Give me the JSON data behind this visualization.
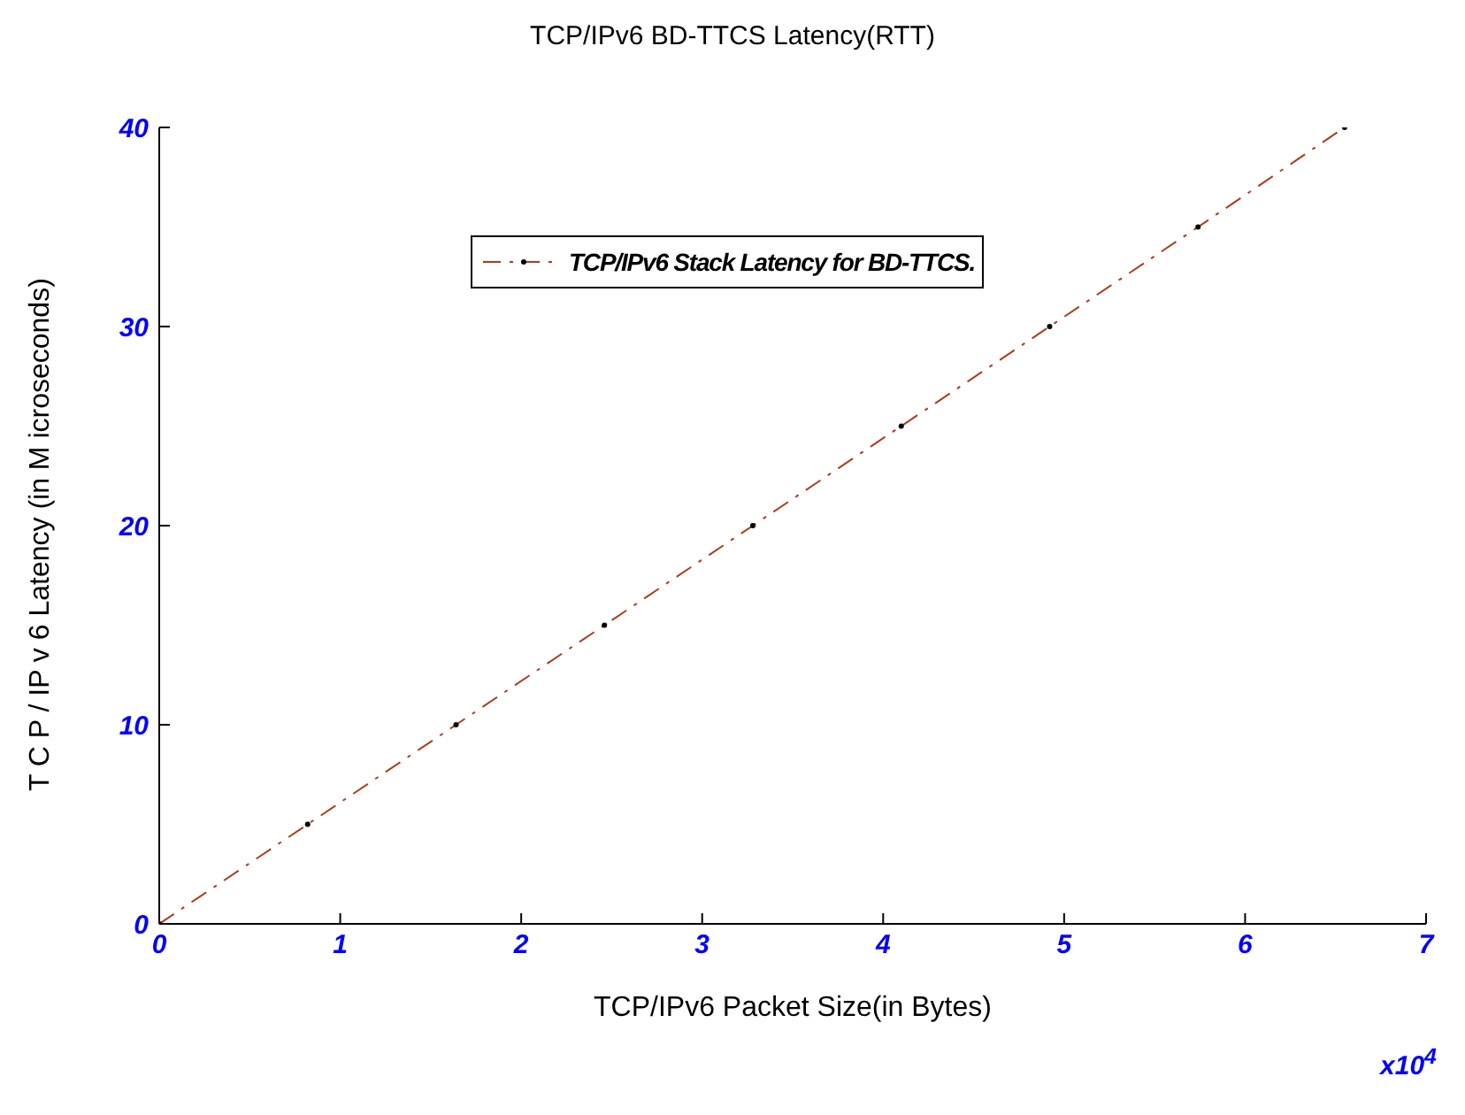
{
  "chart_data": {
    "type": "line",
    "title": "TCP/IPv6 BD-TTCS  Latency(RTT)",
    "xlabel": "TCP/IPv6 Packet Size(in Bytes)",
    "ylabel": "T C P / IP v 6  Latency (in  M icroseconds)",
    "x": [
      0,
      0.82,
      1.64,
      2.46,
      3.28,
      4.1,
      4.92,
      5.74,
      6.55
    ],
    "series": [
      {
        "name": "TCP/IPv6 Stack Latency for BD-TTCS.",
        "color": "#b03a1a",
        "values": [
          0,
          5,
          10,
          15,
          20,
          25,
          30,
          35,
          40
        ]
      }
    ],
    "xlim": [
      0,
      7
    ],
    "xticks": [
      0,
      1,
      2,
      3,
      4,
      5,
      6,
      7
    ],
    "ylim": [
      0,
      40
    ],
    "yticks": [
      0,
      10,
      20,
      30,
      40
    ],
    "grid": false,
    "legend": "top",
    "marker": "circle",
    "line_style": "dashed",
    "annotations": [
      "x10$^{4}$"
    ]
  }
}
